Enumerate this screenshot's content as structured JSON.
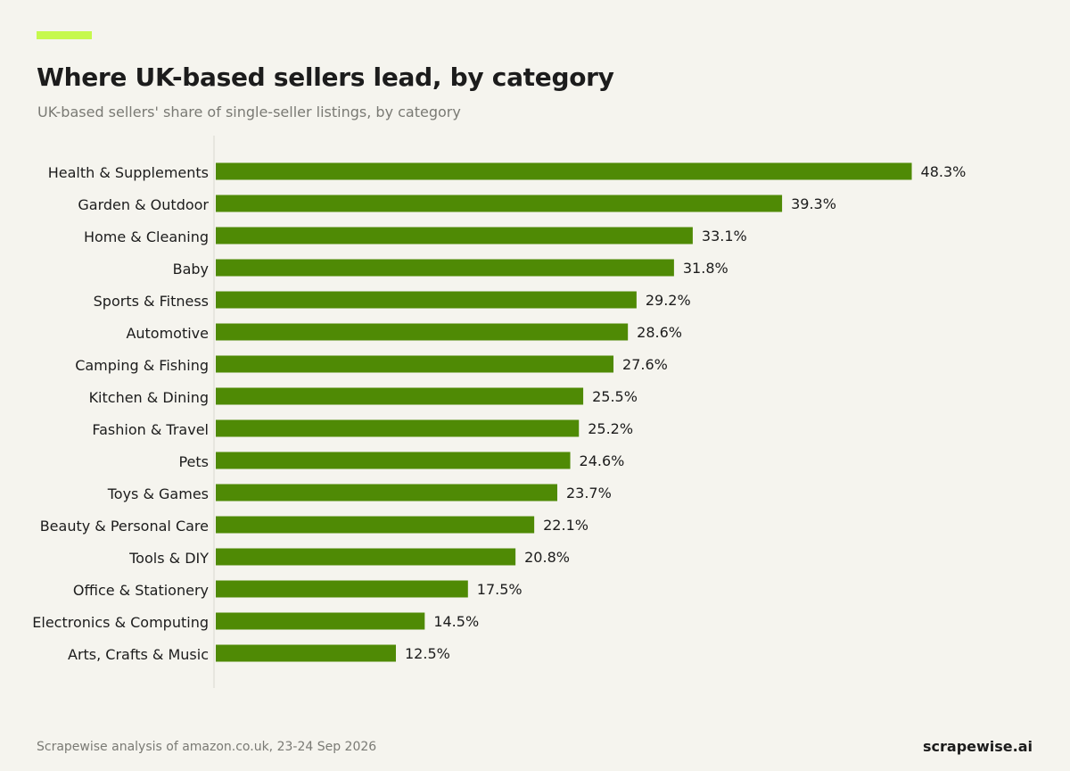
{
  "header": {
    "title": "Where UK-based sellers lead, by category",
    "subtitle": "UK-based sellers' share of single-seller listings, by category"
  },
  "footer": {
    "source": "Scrapewise analysis of amazon.co.uk, 23-24 Sep 2026",
    "brand": "scrapewise.ai"
  },
  "colors": {
    "accent": "#c6f94d",
    "bar": "#4f8a05",
    "axis": "#d9d8d0",
    "background": "#f5f4ee"
  },
  "chart_data": {
    "type": "bar",
    "orientation": "horizontal",
    "title": "Where UK-based sellers lead, by category",
    "subtitle": "UK-based sellers' share of single-seller listings, by category",
    "xlabel": "",
    "ylabel": "",
    "xlim": [
      0,
      50
    ],
    "grid": false,
    "legend": "none",
    "categories": [
      "Health & Supplements",
      "Garden & Outdoor",
      "Home & Cleaning",
      "Baby",
      "Sports & Fitness",
      "Automotive",
      "Camping & Fishing",
      "Kitchen & Dining",
      "Fashion & Travel",
      "Pets",
      "Toys & Games",
      "Beauty & Personal Care",
      "Tools & DIY",
      "Office & Stationery",
      "Electronics & Computing",
      "Arts, Crafts & Music"
    ],
    "values": [
      48.3,
      39.3,
      33.1,
      31.8,
      29.2,
      28.6,
      27.6,
      25.5,
      25.2,
      24.6,
      23.7,
      22.1,
      20.8,
      17.5,
      14.5,
      12.5
    ],
    "labels": [
      "48.3%",
      "39.3%",
      "33.1%",
      "31.8%",
      "29.2%",
      "28.6%",
      "27.6%",
      "25.5%",
      "25.2%",
      "24.6%",
      "23.7%",
      "22.1%",
      "20.8%",
      "17.5%",
      "14.5%",
      "12.5%"
    ]
  }
}
